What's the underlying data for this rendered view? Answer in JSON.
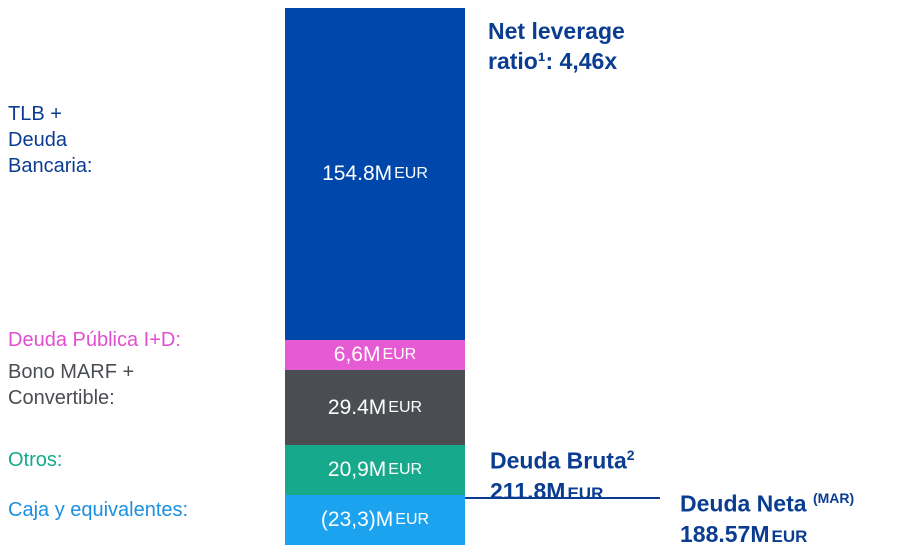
{
  "segments": [
    {
      "label": [
        "TLB +",
        "Deuda",
        "Bancaria:"
      ],
      "amount": "154.8M",
      "unit": "EUR",
      "color": "#0047ab",
      "label_color": "#0a3d91"
    },
    {
      "label": [
        "Deuda Pública I+D:"
      ],
      "amount": "6,6M",
      "unit": "EUR",
      "color": "#e65bd3",
      "label_color": "#e04fcf"
    },
    {
      "label": [
        "Bono MARF +",
        "Convertible:"
      ],
      "amount": "29.4M",
      "unit": "EUR",
      "color": "#4a4d52",
      "label_color": "#4a4d52"
    },
    {
      "label": [
        "Otros:"
      ],
      "amount": "20,9M",
      "unit": "EUR",
      "color": "#16a98b",
      "label_color": "#16a98b"
    },
    {
      "label": [
        "Caja y equivalentes:"
      ],
      "amount": "(23,3)M",
      "unit": "EUR",
      "color": "#1ba3f0",
      "label_color": "#1b8fe0"
    }
  ],
  "leverage": [
    "Net leverage",
    "ratio¹: 4,46x"
  ],
  "gross": {
    "title": "Deuda Bruta",
    "sup": "2",
    "amount": "211.8M",
    "unit": "EUR"
  },
  "net": {
    "title": "Deuda Neta",
    "sup": "(MAR)",
    "amount": "188.57M",
    "unit": "EUR"
  }
}
